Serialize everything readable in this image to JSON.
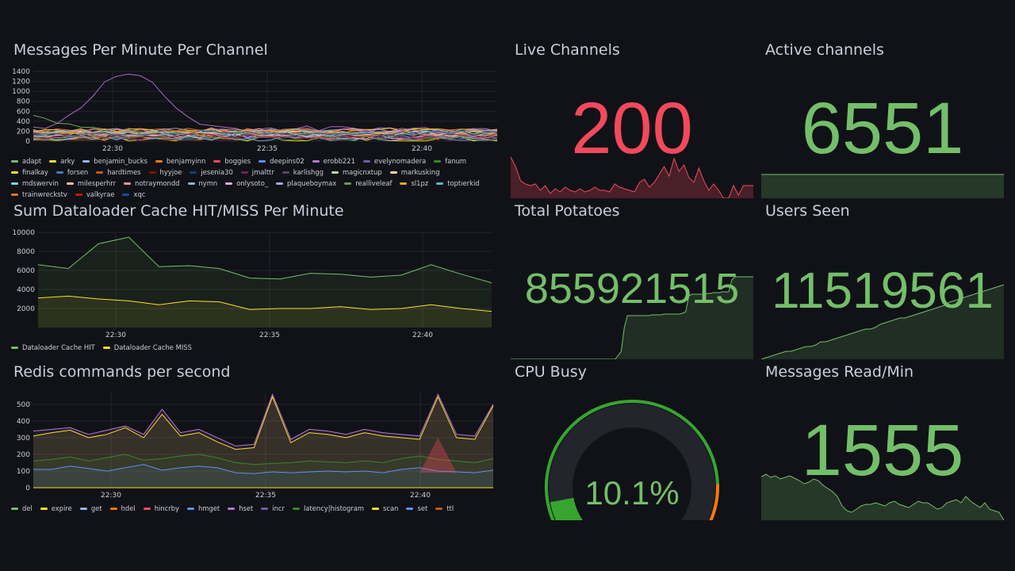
{
  "colors": {
    "green": "#73bf69",
    "red": "#f2495c",
    "yellow": "#fade2a",
    "blue": "#5794f2",
    "grid": "#24262b",
    "text": "#ccccdc"
  },
  "panels": {
    "messages": {
      "title": "Messages Per Minute Per Channel",
      "yticks": [
        "0",
        "200",
        "400",
        "600",
        "800",
        "1000",
        "1200",
        "1400"
      ],
      "xticks": [
        "22:30",
        "22:35",
        "22:40"
      ],
      "legend": [
        {
          "name": "adapt",
          "color": "#73bf69"
        },
        {
          "name": "arky",
          "color": "#fade2a"
        },
        {
          "name": "benjamin_bucks",
          "color": "#8ab8ff"
        },
        {
          "name": "benjamyinn",
          "color": "#ff780a"
        },
        {
          "name": "boggies",
          "color": "#f2495c"
        },
        {
          "name": "deepins02",
          "color": "#5794f2"
        },
        {
          "name": "erobb221",
          "color": "#b877d9"
        },
        {
          "name": "evelynomadera",
          "color": "#705da0"
        },
        {
          "name": "fanum",
          "color": "#37872d"
        },
        {
          "name": "finalkay",
          "color": "#fade2a"
        },
        {
          "name": "forsen",
          "color": "#447ebc"
        },
        {
          "name": "hardtimes",
          "color": "#c15c17"
        },
        {
          "name": "hyyjoe",
          "color": "#890f02"
        },
        {
          "name": "jesenia30",
          "color": "#0a437c"
        },
        {
          "name": "jmalttr",
          "color": "#6d1f62"
        },
        {
          "name": "karlishgg",
          "color": "#584477"
        },
        {
          "name": "magicnxtup",
          "color": "#b7dbab"
        },
        {
          "name": "markusking",
          "color": "#f4d598"
        },
        {
          "name": "mdswervin",
          "color": "#70dbed"
        },
        {
          "name": "milesperhrr",
          "color": "#f9ba8f"
        },
        {
          "name": "notraymondd",
          "color": "#f29191"
        },
        {
          "name": "nymn",
          "color": "#82b5d8"
        },
        {
          "name": "onlysoto_",
          "color": "#e5a8e2"
        },
        {
          "name": "plaqueboymax",
          "color": "#aea2e0"
        },
        {
          "name": "realliveleaf",
          "color": "#629e51"
        },
        {
          "name": "sl1pz",
          "color": "#e5ac0e"
        },
        {
          "name": "toptıerkid",
          "color": "#64b0c8"
        },
        {
          "name": "trainwreckstv",
          "color": "#e0752d"
        },
        {
          "name": "valkyrae",
          "color": "#bf1b00"
        },
        {
          "name": "xqc",
          "color": "#0a50a1"
        }
      ]
    },
    "dataloader": {
      "title": "Sum Dataloader Cache HIT/MISS Per Minute",
      "yticks": [
        "2000",
        "4000",
        "6000",
        "8000",
        "10000"
      ],
      "xticks": [
        "22:30",
        "22:35",
        "22:40"
      ],
      "legend": [
        {
          "name": "Dataloader Cache HIT",
          "color": "#73bf69"
        },
        {
          "name": "Dataloader Cache MISS",
          "color": "#fade2a"
        }
      ]
    },
    "redis": {
      "title": "Redis commands per second",
      "yticks": [
        "0",
        "100",
        "200",
        "300",
        "400",
        "500"
      ],
      "xticks": [
        "22:30",
        "22:35",
        "22:40"
      ],
      "legend": [
        {
          "name": "del",
          "color": "#73bf69"
        },
        {
          "name": "expire",
          "color": "#fade2a"
        },
        {
          "name": "get",
          "color": "#8ab8ff"
        },
        {
          "name": "hdel",
          "color": "#ff780a"
        },
        {
          "name": "hincrby",
          "color": "#f2495c"
        },
        {
          "name": "hmget",
          "color": "#5794f2"
        },
        {
          "name": "hset",
          "color": "#b877d9"
        },
        {
          "name": "incr",
          "color": "#705da0"
        },
        {
          "name": "latency|histogram",
          "color": "#37872d"
        },
        {
          "name": "scan",
          "color": "#fade2a"
        },
        {
          "name": "set",
          "color": "#5794f2"
        },
        {
          "name": "ttl",
          "color": "#c15c17"
        }
      ]
    },
    "live_channels": {
      "title": "Live Channels",
      "value": "200",
      "color": "#f2495c"
    },
    "active_channels": {
      "title": "Active channels",
      "value": "6551",
      "color": "#73bf69"
    },
    "total_potatoes": {
      "title": "Total Potatoes",
      "value": "855921515",
      "color": "#73bf69"
    },
    "users_seen": {
      "title": "Users Seen",
      "value": "11519561",
      "color": "#73bf69"
    },
    "cpu_busy": {
      "title": "CPU Busy",
      "value": "10.1%",
      "percent": 10.1,
      "color": "#73bf69"
    },
    "messages_read": {
      "title": "Messages Read/Min",
      "value": "1555",
      "color": "#73bf69"
    }
  },
  "chart_data": [
    {
      "type": "line",
      "title": "Sum Dataloader Cache HIT/MISS Per Minute",
      "x": [
        "22:27",
        "22:28",
        "22:29",
        "22:30",
        "22:31",
        "22:32",
        "22:33",
        "22:34",
        "22:35",
        "22:36",
        "22:37",
        "22:38",
        "22:39",
        "22:40",
        "22:41",
        "22:42"
      ],
      "series": [
        {
          "name": "Dataloader Cache HIT",
          "values": [
            6600,
            6200,
            8800,
            9500,
            6400,
            6500,
            6200,
            5200,
            5100,
            5700,
            5600,
            5300,
            5500,
            6600,
            5600,
            4700
          ]
        },
        {
          "name": "Dataloader Cache MISS",
          "values": [
            3100,
            3300,
            3000,
            2800,
            2400,
            2800,
            2700,
            1900,
            2000,
            2000,
            2200,
            1900,
            2000,
            2400,
            2000,
            1700
          ]
        }
      ],
      "ylim": [
        0,
        10000
      ]
    },
    {
      "type": "line",
      "title": "Live Channels",
      "series": [
        {
          "name": "Live Channels",
          "values": [
            200,
            190,
            170,
            175,
            160,
            165,
            180,
            170,
            185,
            195,
            200,
            190,
            210,
            205,
            170,
            175,
            200
          ]
        }
      ]
    }
  ]
}
